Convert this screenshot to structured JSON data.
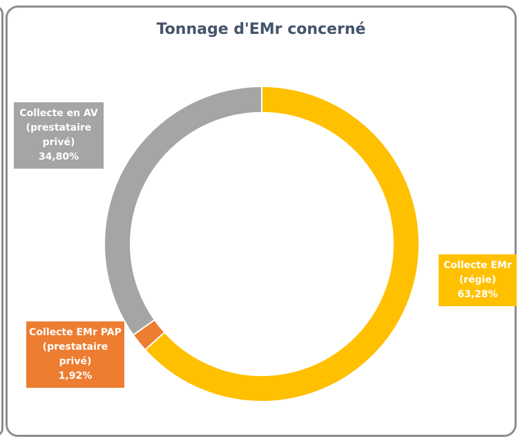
{
  "chart_data": {
    "type": "donut",
    "title": "Tonnage d'EMr concerné",
    "categories": [
      "Collecte EMr (régie)",
      "Collecte EMr PAP (prestataire privé)",
      "Collecte en AV (prestataire privé)"
    ],
    "values": [
      63.28,
      1.92,
      34.8
    ],
    "value_labels": [
      "63,28%",
      "1,92%",
      "34,80%"
    ],
    "colors": [
      "#FFC000",
      "#ED7D31",
      "#A5A5A5"
    ]
  }
}
